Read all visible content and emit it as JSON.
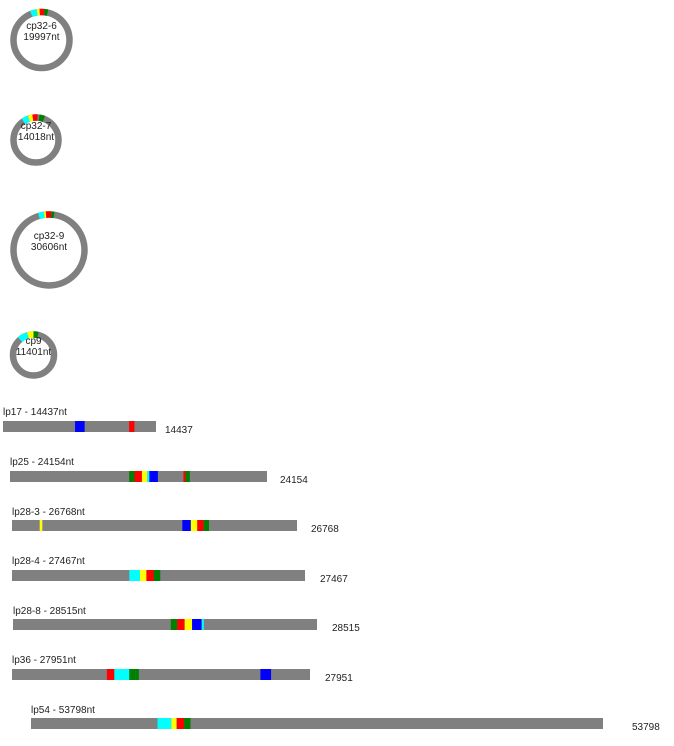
{
  "palette": {
    "backbone": "#808080",
    "cyan": "#00ffff",
    "yellow": "#ffff00",
    "red": "#ff0000",
    "green": "#008000",
    "blue": "#0000ff"
  },
  "circular_plasmids": [
    {
      "name": "cp32-6",
      "size_label": "19997nt",
      "length": 19997,
      "features": [
        {
          "start": 18800,
          "end": 19500,
          "color": "cyan"
        },
        {
          "start": 19500,
          "end": 19800,
          "color": "yellow"
        },
        {
          "start": 19800,
          "end": 19997,
          "color": "red"
        },
        {
          "start": 0,
          "end": 300,
          "color": "red"
        },
        {
          "start": 300,
          "end": 700,
          "color": "green"
        }
      ]
    },
    {
      "name": "cp32-7",
      "size_label": "14018nt",
      "length": 14018,
      "features": [
        {
          "start": 12700,
          "end": 13300,
          "color": "cyan"
        },
        {
          "start": 13300,
          "end": 13700,
          "color": "yellow"
        },
        {
          "start": 13700,
          "end": 14018,
          "color": "red"
        },
        {
          "start": 0,
          "end": 150,
          "color": "red"
        },
        {
          "start": 300,
          "end": 800,
          "color": "green"
        }
      ]
    },
    {
      "name": "cp32-9",
      "size_label": "30606nt",
      "length": 30606,
      "features": [
        {
          "start": 29200,
          "end": 29950,
          "color": "cyan"
        },
        {
          "start": 29950,
          "end": 30200,
          "color": "yellow"
        },
        {
          "start": 30200,
          "end": 30606,
          "color": "red"
        },
        {
          "start": 0,
          "end": 300,
          "color": "red"
        },
        {
          "start": 300,
          "end": 700,
          "color": "green"
        }
      ]
    },
    {
      "name": "cp9",
      "size_label": "11401nt",
      "length": 11401,
      "features": [
        {
          "start": 10100,
          "end": 10900,
          "color": "cyan"
        },
        {
          "start": 10900,
          "end": 11200,
          "color": "yellow"
        },
        {
          "start": 11200,
          "end": 11401,
          "color": "yellow"
        },
        {
          "start": 0,
          "end": 400,
          "color": "green"
        }
      ]
    }
  ],
  "linear_plasmids": [
    {
      "title": "lp17 - 14437nt",
      "end_label": "14437",
      "length": 14437,
      "features": [
        {
          "start": 6800,
          "end": 7700,
          "color": "blue"
        },
        {
          "start": 11900,
          "end": 12400,
          "color": "red"
        }
      ]
    },
    {
      "title": "lp25 - 24154nt",
      "end_label": "24154",
      "length": 24154,
      "features": [
        {
          "start": 11200,
          "end": 11700,
          "color": "green"
        },
        {
          "start": 11700,
          "end": 12400,
          "color": "red"
        },
        {
          "start": 12400,
          "end": 12900,
          "color": "yellow"
        },
        {
          "start": 12900,
          "end": 13100,
          "color": "cyan"
        },
        {
          "start": 13100,
          "end": 13900,
          "color": "blue"
        },
        {
          "start": 16300,
          "end": 16500,
          "color": "red"
        },
        {
          "start": 16500,
          "end": 16900,
          "color": "green"
        }
      ]
    },
    {
      "title": "lp28-3 - 26768nt",
      "end_label": "26768",
      "length": 26768,
      "features": [
        {
          "start": 2600,
          "end": 2850,
          "color": "yellow"
        },
        {
          "start": 16000,
          "end": 16800,
          "color": "blue"
        },
        {
          "start": 16800,
          "end": 17400,
          "color": "yellow"
        },
        {
          "start": 17400,
          "end": 18000,
          "color": "red"
        },
        {
          "start": 18000,
          "end": 18500,
          "color": "green"
        }
      ]
    },
    {
      "title": "lp28-4 - 27467nt",
      "end_label": "27467",
      "length": 27467,
      "features": [
        {
          "start": 11000,
          "end": 12000,
          "color": "cyan"
        },
        {
          "start": 12000,
          "end": 12600,
          "color": "yellow"
        },
        {
          "start": 12600,
          "end": 13300,
          "color": "red"
        },
        {
          "start": 13300,
          "end": 13900,
          "color": "green"
        }
      ]
    },
    {
      "title": "lp28-8 - 28515nt",
      "end_label": "28515",
      "length": 28515,
      "features": [
        {
          "start": 14800,
          "end": 15400,
          "color": "green"
        },
        {
          "start": 15400,
          "end": 16100,
          "color": "red"
        },
        {
          "start": 16100,
          "end": 16800,
          "color": "yellow"
        },
        {
          "start": 16800,
          "end": 17700,
          "color": "blue"
        },
        {
          "start": 17700,
          "end": 17900,
          "color": "cyan"
        }
      ]
    },
    {
      "title": "lp36 - 27951nt",
      "end_label": "27951",
      "length": 27951,
      "features": [
        {
          "start": 8900,
          "end": 9600,
          "color": "red"
        },
        {
          "start": 9600,
          "end": 11000,
          "color": "cyan"
        },
        {
          "start": 11000,
          "end": 11600,
          "color": "green"
        },
        {
          "start": 11600,
          "end": 11900,
          "color": "green"
        },
        {
          "start": 23300,
          "end": 24300,
          "color": "blue"
        }
      ]
    },
    {
      "title": "lp54 - 53798nt",
      "end_label": "53798",
      "length": 53798,
      "features": [
        {
          "start": 11900,
          "end": 13200,
          "color": "cyan"
        },
        {
          "start": 13200,
          "end": 13700,
          "color": "yellow"
        },
        {
          "start": 13700,
          "end": 14400,
          "color": "red"
        },
        {
          "start": 14400,
          "end": 15000,
          "color": "green"
        }
      ]
    }
  ]
}
